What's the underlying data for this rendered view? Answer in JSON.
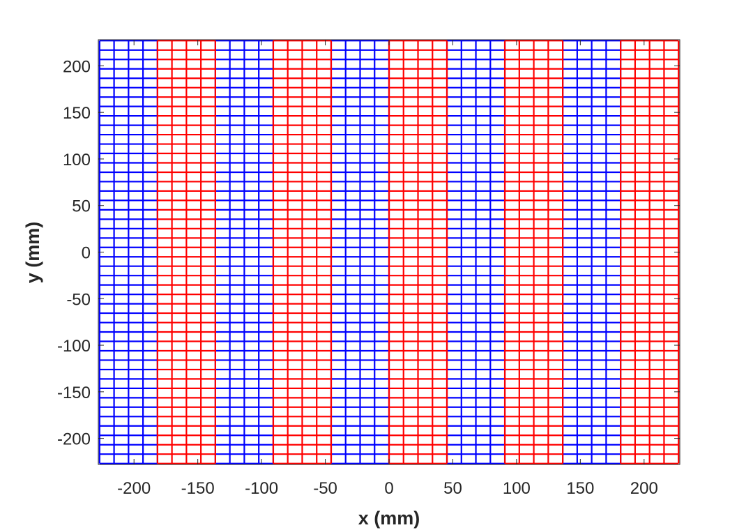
{
  "chart_data": {
    "type": "mesh-grid",
    "title": "",
    "xlabel": "x (mm)",
    "ylabel": "y (mm)",
    "xlim": [
      -228,
      228
    ],
    "ylim": [
      -228,
      228
    ],
    "xticks": [
      -200,
      -150,
      -100,
      -50,
      0,
      50,
      100,
      150,
      200
    ],
    "yticks": [
      -200,
      -150,
      -100,
      -50,
      0,
      50,
      100,
      150,
      200
    ],
    "xtick_labels": [
      "-200",
      "-150",
      "-100",
      "-50",
      "0",
      "50",
      "100",
      "150",
      "200"
    ],
    "ytick_labels": [
      "200",
      "150",
      "100",
      "50",
      "0",
      "-50",
      "-100",
      "-150",
      "-200"
    ],
    "grid": false,
    "box": true,
    "mesh": {
      "x_extent": [
        -227,
        227
      ],
      "y_extent": [
        -227,
        227
      ],
      "cells_per_stripe_x": 4,
      "cell_rows_y": 45
    },
    "series": [
      {
        "name": "blue stripes",
        "color": "#0000ff",
        "stripes": [
          [
            -227,
            -181.6
          ],
          [
            -136.2,
            -90.8
          ],
          [
            -45.4,
            0
          ],
          [
            45.4,
            90.8
          ],
          [
            136.2,
            181.6
          ]
        ]
      },
      {
        "name": "red stripes",
        "color": "#ff0000",
        "stripes": [
          [
            -181.6,
            -136.2
          ],
          [
            -90.8,
            -45.4
          ],
          [
            0,
            45.4
          ],
          [
            90.8,
            136.2
          ],
          [
            181.6,
            227
          ]
        ]
      }
    ]
  }
}
